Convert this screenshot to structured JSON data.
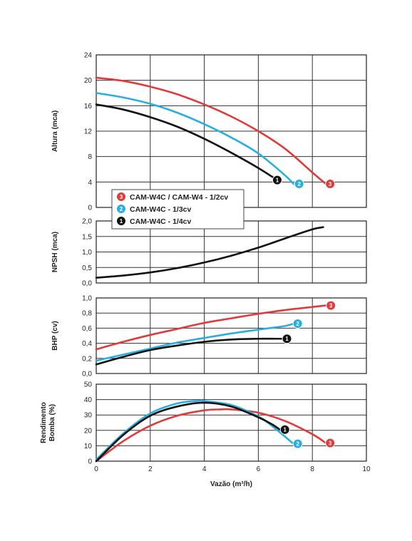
{
  "chart_data": {
    "type": "line",
    "x_axis": {
      "label": "Vazão (m³/h)",
      "range": [
        0,
        10
      ],
      "ticks": [
        "0",
        "2",
        "4",
        "6",
        "8",
        "10"
      ]
    },
    "legend": {
      "placement": "over-bottom-of-top-panel",
      "entries": [
        {
          "marker": "3",
          "label": "CAM-W4C / CAM-W4 - 1/2cv",
          "color": "#e03a3a"
        },
        {
          "marker": "2",
          "label": "CAM-W4C - 1/3cv",
          "color": "#29aee0"
        },
        {
          "marker": "1",
          "label": "CAM-W4C - 1/4cv",
          "color": "#111111"
        }
      ]
    },
    "panels": [
      {
        "id": "altura",
        "ylabel": [
          "Altura (mca)"
        ],
        "ylim": [
          0,
          24
        ],
        "yticks": [
          "0",
          "4",
          "8",
          "12",
          "16",
          "20",
          "24"
        ],
        "grid": true,
        "series": [
          {
            "marker": "3",
            "color": "#e03a3a",
            "points": [
              [
                0,
                20.4
              ],
              [
                1,
                19.9
              ],
              [
                2,
                19.0
              ],
              [
                3,
                17.8
              ],
              [
                4,
                16.2
              ],
              [
                5,
                14.3
              ],
              [
                6,
                12.0
              ],
              [
                7,
                9.2
              ],
              [
                8,
                5.5
              ],
              [
                8.5,
                3.7
              ]
            ]
          },
          {
            "marker": "2",
            "color": "#29aee0",
            "points": [
              [
                0,
                18.0
              ],
              [
                1,
                17.3
              ],
              [
                2,
                16.3
              ],
              [
                3,
                14.9
              ],
              [
                4,
                13.1
              ],
              [
                5,
                11.0
              ],
              [
                6,
                8.5
              ],
              [
                7,
                5.0
              ],
              [
                7.3,
                3.7
              ]
            ]
          },
          {
            "marker": "1",
            "color": "#111111",
            "points": [
              [
                0,
                16.2
              ],
              [
                1,
                15.4
              ],
              [
                2,
                14.2
              ],
              [
                3,
                12.7
              ],
              [
                4,
                10.8
              ],
              [
                5,
                8.6
              ],
              [
                6,
                6.2
              ],
              [
                6.7,
                4.3
              ]
            ]
          }
        ]
      },
      {
        "id": "npsh",
        "ylabel": [
          "NPSH (mca)"
        ],
        "ylim": [
          0,
          2
        ],
        "yticks": [
          "0,0",
          "0,5",
          "1,0",
          "1,5",
          "2,0"
        ],
        "grid": true,
        "series": [
          {
            "color": "#111111",
            "points": [
              [
                0,
                0.17
              ],
              [
                1,
                0.24
              ],
              [
                2,
                0.34
              ],
              [
                3,
                0.48
              ],
              [
                4,
                0.66
              ],
              [
                5,
                0.88
              ],
              [
                6,
                1.14
              ],
              [
                7,
                1.44
              ],
              [
                8,
                1.73
              ],
              [
                8.4,
                1.8
              ]
            ]
          }
        ]
      },
      {
        "id": "bhp",
        "ylabel": [
          "BHP (cv)"
        ],
        "ylim": [
          0,
          1
        ],
        "yticks": [
          "0,0",
          "0,2",
          "0,4",
          "0,6",
          "0,8",
          "1,0"
        ],
        "grid": true,
        "series": [
          {
            "marker": "3",
            "color": "#e03a3a",
            "points": [
              [
                0,
                0.32
              ],
              [
                1,
                0.42
              ],
              [
                2,
                0.51
              ],
              [
                3,
                0.59
              ],
              [
                4,
                0.67
              ],
              [
                5,
                0.73
              ],
              [
                6,
                0.79
              ],
              [
                7,
                0.84
              ],
              [
                8,
                0.88
              ],
              [
                8.5,
                0.9
              ]
            ]
          },
          {
            "marker": "2",
            "color": "#29aee0",
            "points": [
              [
                0,
                0.17
              ],
              [
                1,
                0.25
              ],
              [
                2,
                0.33
              ],
              [
                3,
                0.41
              ],
              [
                4,
                0.47
              ],
              [
                5,
                0.53
              ],
              [
                6,
                0.58
              ],
              [
                7,
                0.63
              ],
              [
                7.3,
                0.66
              ]
            ]
          },
          {
            "marker": "1",
            "color": "#111111",
            "points": [
              [
                0,
                0.12
              ],
              [
                1,
                0.22
              ],
              [
                2,
                0.31
              ],
              [
                3,
                0.37
              ],
              [
                4,
                0.42
              ],
              [
                5,
                0.45
              ],
              [
                6,
                0.46
              ],
              [
                6.6,
                0.46
              ],
              [
                6.9,
                0.46
              ]
            ]
          }
        ]
      },
      {
        "id": "rendimento",
        "ylabel": [
          "Rendimento",
          "Bomba (%)"
        ],
        "ylim": [
          0,
          50
        ],
        "yticks": [
          "0",
          "10",
          "20",
          "30",
          "40",
          "50"
        ],
        "grid": true,
        "series": [
          {
            "marker": "3",
            "color": "#e03a3a",
            "points": [
              [
                0,
                0
              ],
              [
                1,
                13
              ],
              [
                2,
                23
              ],
              [
                3,
                29.5
              ],
              [
                4,
                33
              ],
              [
                4.6,
                33.6
              ],
              [
                5,
                33.6
              ],
              [
                6,
                31.5
              ],
              [
                7,
                26
              ],
              [
                8,
                17.5
              ],
              [
                8.5,
                11.8
              ]
            ]
          },
          {
            "marker": "2",
            "color": "#29aee0",
            "points": [
              [
                0,
                1
              ],
              [
                1,
                18
              ],
              [
                2,
                31
              ],
              [
                3,
                37.5
              ],
              [
                3.8,
                39.2
              ],
              [
                4,
                39
              ],
              [
                5,
                36.5
              ],
              [
                6,
                29
              ],
              [
                6.5,
                23
              ],
              [
                7.3,
                11.3
              ]
            ]
          },
          {
            "marker": "1",
            "color": "#111111",
            "points": [
              [
                0,
                0
              ],
              [
                1,
                17
              ],
              [
                2,
                29.5
              ],
              [
                3,
                35.5
              ],
              [
                4,
                38
              ],
              [
                5,
                35.5
              ],
              [
                6,
                28.5
              ],
              [
                6.5,
                24
              ],
              [
                6.8,
                20.5
              ]
            ]
          }
        ]
      }
    ]
  }
}
